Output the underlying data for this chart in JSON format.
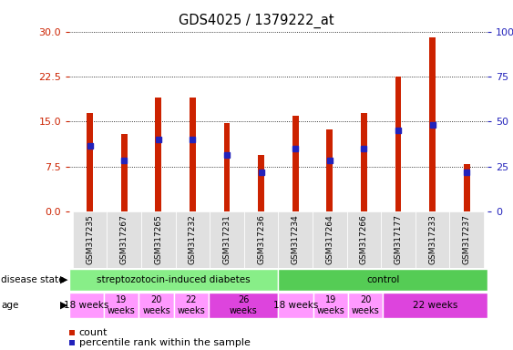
{
  "title": "GDS4025 / 1379222_at",
  "samples": [
    "GSM317235",
    "GSM317267",
    "GSM317265",
    "GSM317232",
    "GSM317231",
    "GSM317236",
    "GSM317234",
    "GSM317264",
    "GSM317266",
    "GSM317177",
    "GSM317233",
    "GSM317237"
  ],
  "bar_heights": [
    16.5,
    13.0,
    19.0,
    19.0,
    14.7,
    9.5,
    16.0,
    13.7,
    16.5,
    22.5,
    29.0,
    8.0
  ],
  "blue_vals": [
    11.0,
    8.5,
    12.0,
    12.0,
    9.5,
    6.5,
    10.5,
    8.5,
    10.5,
    13.5,
    14.5,
    6.5
  ],
  "ylim_left": [
    0,
    30
  ],
  "ylim_right": [
    0,
    100
  ],
  "yticks_left": [
    0,
    7.5,
    15,
    22.5,
    30
  ],
  "yticks_right": [
    0,
    25,
    50,
    75,
    100
  ],
  "bar_color": "#cc2200",
  "dot_color": "#2222bb",
  "background_color": "#ffffff",
  "disease_state_groups": [
    {
      "label": "streptozotocin-induced diabetes",
      "start": 0,
      "end": 6,
      "color": "#88ee88"
    },
    {
      "label": "control",
      "start": 6,
      "end": 12,
      "color": "#55cc55"
    }
  ],
  "age_groups": [
    {
      "label": "18 weeks",
      "start": 0,
      "end": 1,
      "color": "#ff99ff",
      "fontsize": 7.5,
      "two_line": false
    },
    {
      "label": "19\nweeks",
      "start": 1,
      "end": 2,
      "color": "#ff99ff",
      "fontsize": 7,
      "two_line": true
    },
    {
      "label": "20\nweeks",
      "start": 2,
      "end": 3,
      "color": "#ff99ff",
      "fontsize": 7,
      "two_line": true
    },
    {
      "label": "22\nweeks",
      "start": 3,
      "end": 4,
      "color": "#ff99ff",
      "fontsize": 7,
      "two_line": true
    },
    {
      "label": "26\nweeks",
      "start": 4,
      "end": 6,
      "color": "#dd44dd",
      "fontsize": 7,
      "two_line": true
    },
    {
      "label": "18 weeks",
      "start": 6,
      "end": 7,
      "color": "#ff99ff",
      "fontsize": 7.5,
      "two_line": false
    },
    {
      "label": "19\nweeks",
      "start": 7,
      "end": 8,
      "color": "#ff99ff",
      "fontsize": 7,
      "two_line": true
    },
    {
      "label": "20\nweeks",
      "start": 8,
      "end": 9,
      "color": "#ff99ff",
      "fontsize": 7,
      "two_line": true
    },
    {
      "label": "22 weeks",
      "start": 9,
      "end": 12,
      "color": "#dd44dd",
      "fontsize": 7.5,
      "two_line": false
    }
  ],
  "bar_width": 0.18,
  "left_tick_color": "#cc2200",
  "right_tick_color": "#2222bb"
}
